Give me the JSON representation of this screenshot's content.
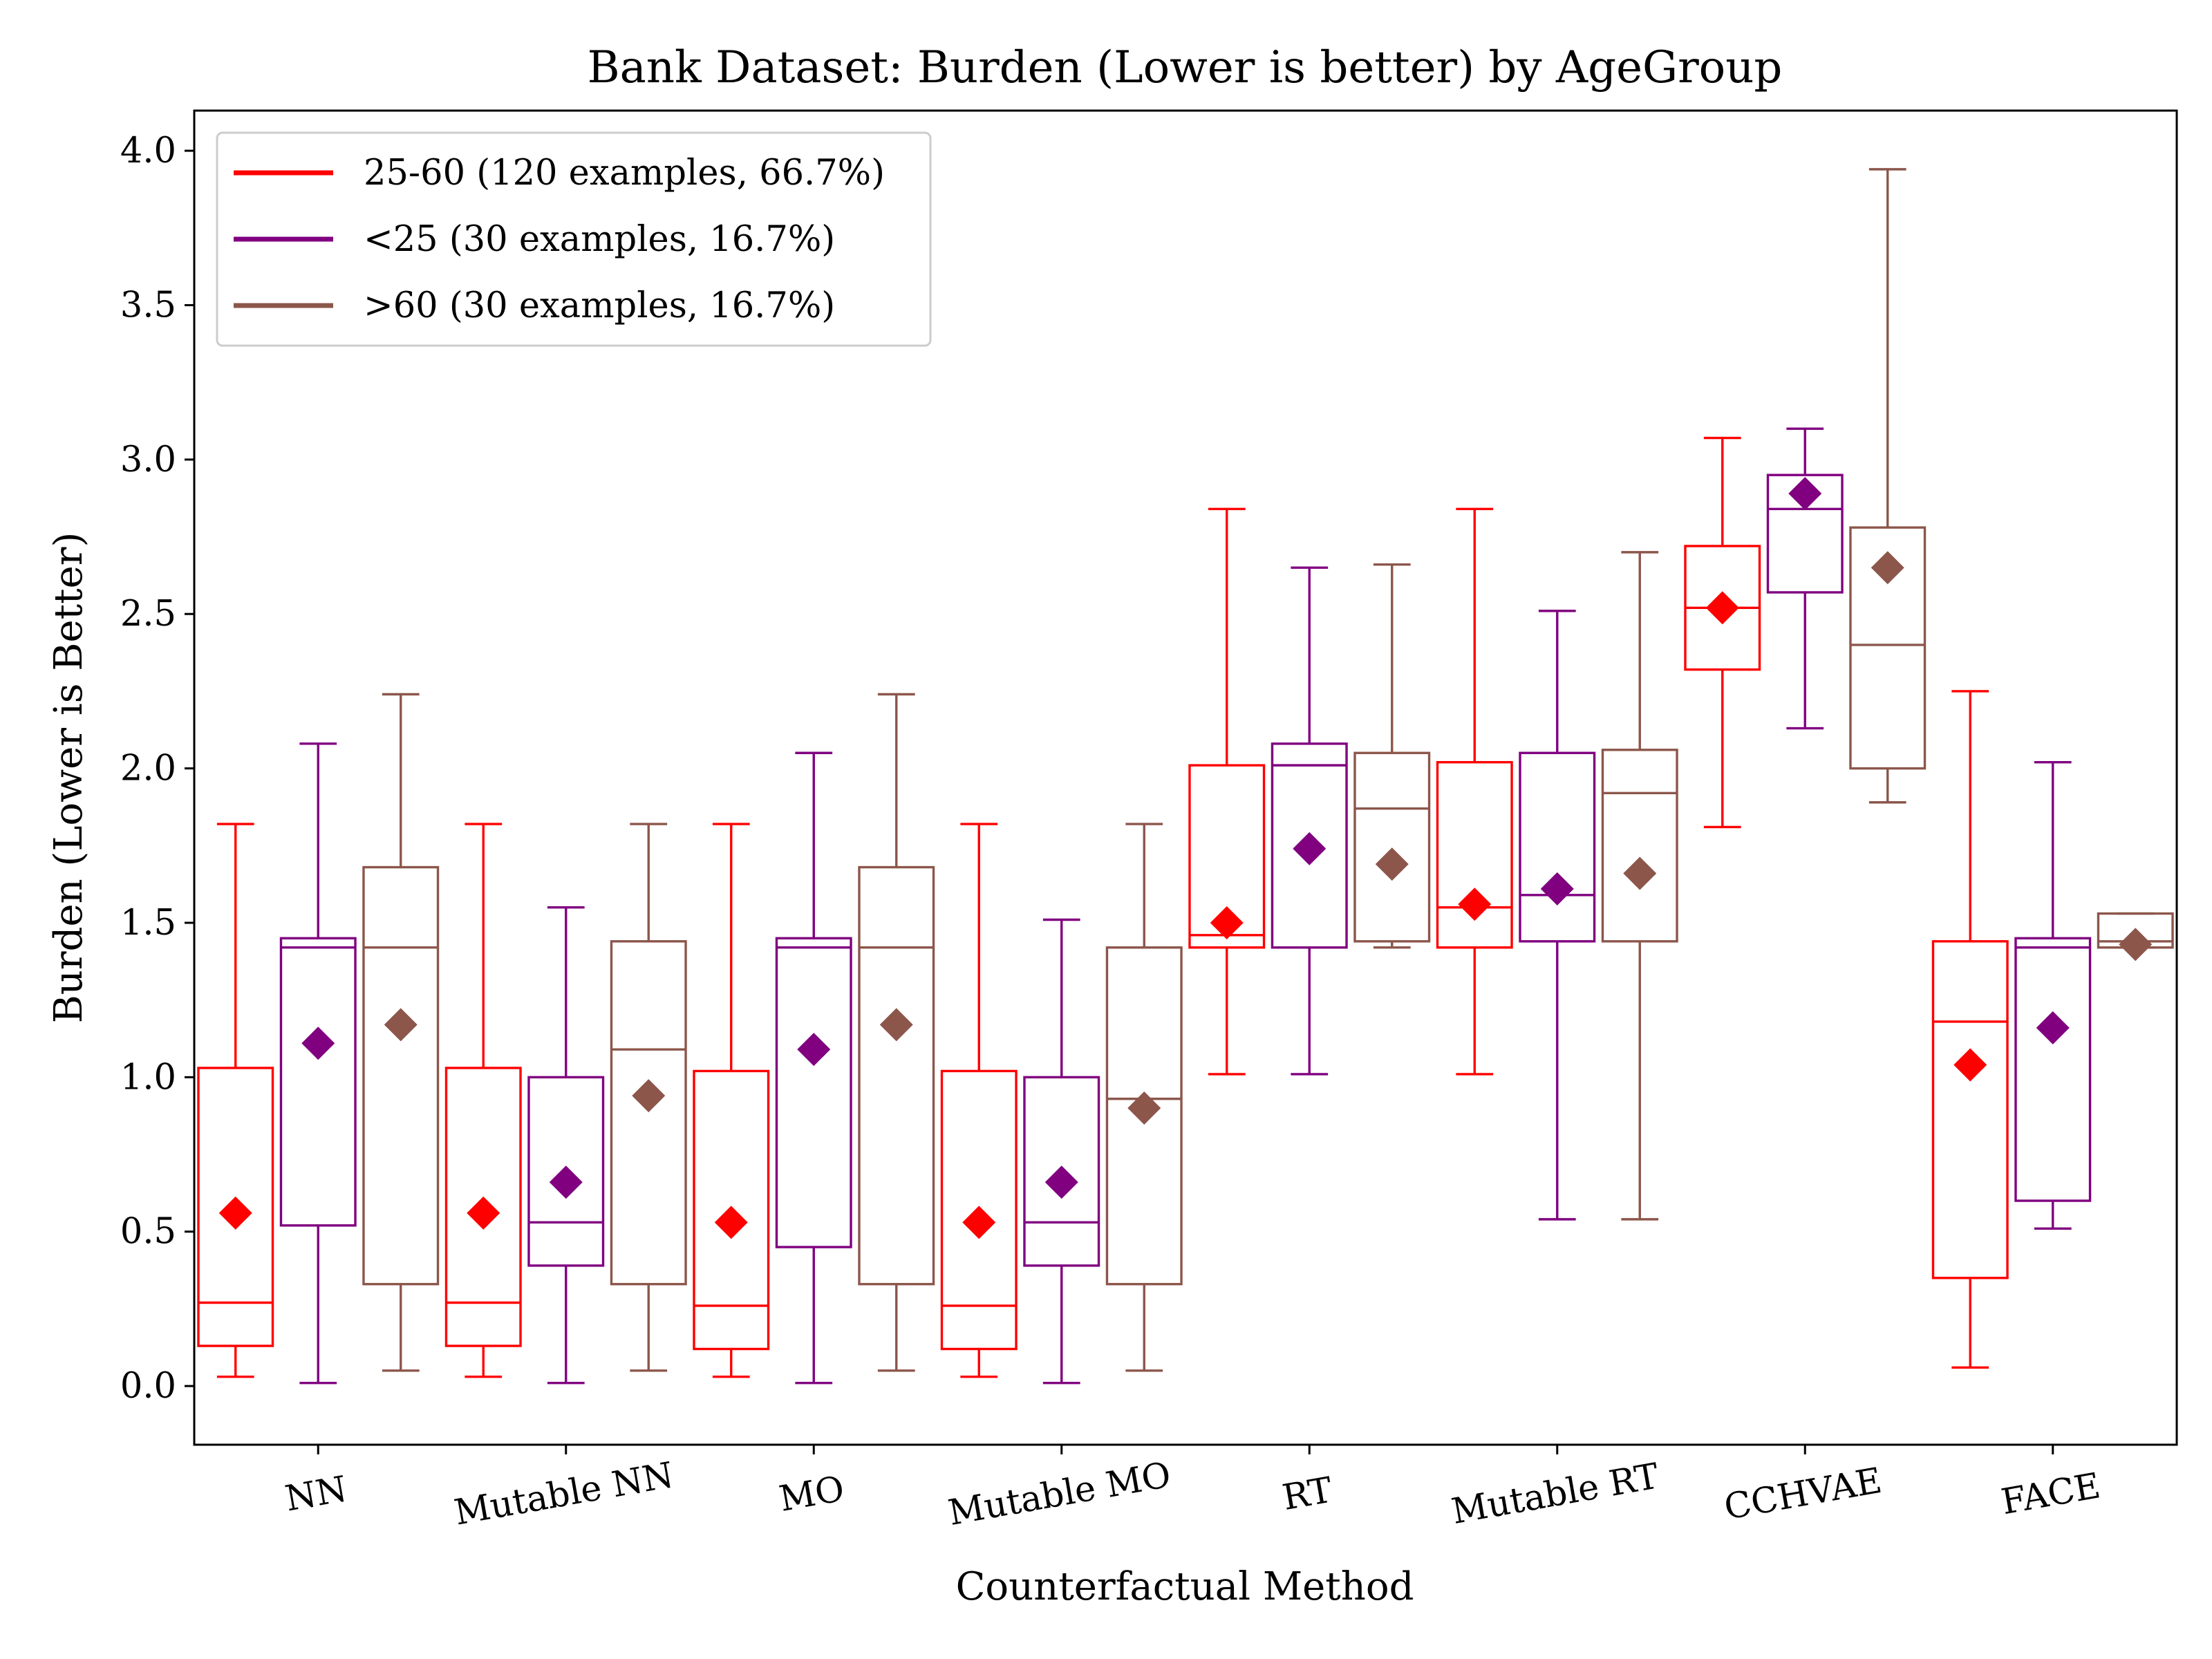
{
  "chart_data": {
    "type": "box",
    "title": "Bank Dataset: Burden (Lower is better) by AgeGroup",
    "xlabel": "Counterfactual Method",
    "ylabel": "Burden (Lower is Better)",
    "ylim": [
      -0.19,
      4.13
    ],
    "yticks": [
      "0.0",
      "0.5",
      "1.0",
      "1.5",
      "2.0",
      "2.5",
      "3.0",
      "3.5",
      "4.0"
    ],
    "grid": false,
    "legend_position": "top-left",
    "mean_marker": "diamond",
    "categories": [
      "NN",
      "Mutable NN",
      "MO",
      "Mutable MO",
      "RT",
      "Mutable RT",
      "CCHVAE",
      "FACE"
    ],
    "series": [
      {
        "name": "25-60 (120 examples, 66.7%)",
        "color": "#ff0000",
        "boxes": [
          {
            "whislo": 0.03,
            "q1": 0.13,
            "med": 0.27,
            "q3": 1.03,
            "whishi": 1.82,
            "mean": 0.56
          },
          {
            "whislo": 0.03,
            "q1": 0.13,
            "med": 0.27,
            "q3": 1.03,
            "whishi": 1.82,
            "mean": 0.56
          },
          {
            "whislo": 0.03,
            "q1": 0.12,
            "med": 0.26,
            "q3": 1.02,
            "whishi": 1.82,
            "mean": 0.53
          },
          {
            "whislo": 0.03,
            "q1": 0.12,
            "med": 0.26,
            "q3": 1.02,
            "whishi": 1.82,
            "mean": 0.53
          },
          {
            "whislo": 1.01,
            "q1": 1.42,
            "med": 1.46,
            "q3": 2.01,
            "whishi": 2.84,
            "mean": 1.5
          },
          {
            "whislo": 1.01,
            "q1": 1.42,
            "med": 1.55,
            "q3": 2.02,
            "whishi": 2.84,
            "mean": 1.56
          },
          {
            "whislo": 1.81,
            "q1": 2.32,
            "med": 2.52,
            "q3": 2.72,
            "whishi": 3.07,
            "mean": 2.52
          },
          {
            "whislo": 0.06,
            "q1": 0.35,
            "med": 1.18,
            "q3": 1.44,
            "whishi": 2.25,
            "mean": 1.04
          }
        ]
      },
      {
        "name": "<25 (30 examples, 16.7%)",
        "color": "#800080",
        "boxes": [
          {
            "whislo": 0.01,
            "q1": 0.52,
            "med": 1.42,
            "q3": 1.45,
            "whishi": 2.08,
            "mean": 1.11
          },
          {
            "whislo": 0.01,
            "q1": 0.39,
            "med": 0.53,
            "q3": 1.0,
            "whishi": 1.55,
            "mean": 0.66
          },
          {
            "whislo": 0.01,
            "q1": 0.45,
            "med": 1.42,
            "q3": 1.45,
            "whishi": 2.05,
            "mean": 1.09
          },
          {
            "whislo": 0.01,
            "q1": 0.39,
            "med": 0.53,
            "q3": 1.0,
            "whishi": 1.51,
            "mean": 0.66
          },
          {
            "whislo": 1.01,
            "q1": 1.42,
            "med": 2.01,
            "q3": 2.08,
            "whishi": 2.65,
            "mean": 1.74
          },
          {
            "whislo": 0.54,
            "q1": 1.44,
            "med": 1.59,
            "q3": 2.05,
            "whishi": 2.51,
            "mean": 1.61
          },
          {
            "whislo": 2.13,
            "q1": 2.57,
            "med": 2.84,
            "q3": 2.95,
            "whishi": 3.1,
            "mean": 2.89
          },
          {
            "whislo": 0.51,
            "q1": 0.6,
            "med": 1.42,
            "q3": 1.45,
            "whishi": 2.02,
            "mean": 1.16
          }
        ]
      },
      {
        "name": ">60 (30 examples, 16.7%)",
        "color": "#8c564b",
        "boxes": [
          {
            "whislo": 0.05,
            "q1": 0.33,
            "med": 1.42,
            "q3": 1.68,
            "whishi": 2.24,
            "mean": 1.17
          },
          {
            "whislo": 0.05,
            "q1": 0.33,
            "med": 1.09,
            "q3": 1.44,
            "whishi": 1.82,
            "mean": 0.94
          },
          {
            "whislo": 0.05,
            "q1": 0.33,
            "med": 1.42,
            "q3": 1.68,
            "whishi": 2.24,
            "mean": 1.17
          },
          {
            "whislo": 0.05,
            "q1": 0.33,
            "med": 0.93,
            "q3": 1.42,
            "whishi": 1.82,
            "mean": 0.9
          },
          {
            "whislo": 1.42,
            "q1": 1.44,
            "med": 1.87,
            "q3": 2.05,
            "whishi": 2.66,
            "mean": 1.69
          },
          {
            "whislo": 0.54,
            "q1": 1.44,
            "med": 1.92,
            "q3": 2.06,
            "whishi": 2.7,
            "mean": 1.66
          },
          {
            "whislo": 1.89,
            "q1": 2.0,
            "med": 2.4,
            "q3": 2.78,
            "whishi": 3.94,
            "mean": 2.65
          },
          {
            "whislo": 1.42,
            "q1": 1.42,
            "med": 1.44,
            "q3": 1.53,
            "whishi": 1.53,
            "mean": 1.43
          }
        ]
      }
    ]
  }
}
